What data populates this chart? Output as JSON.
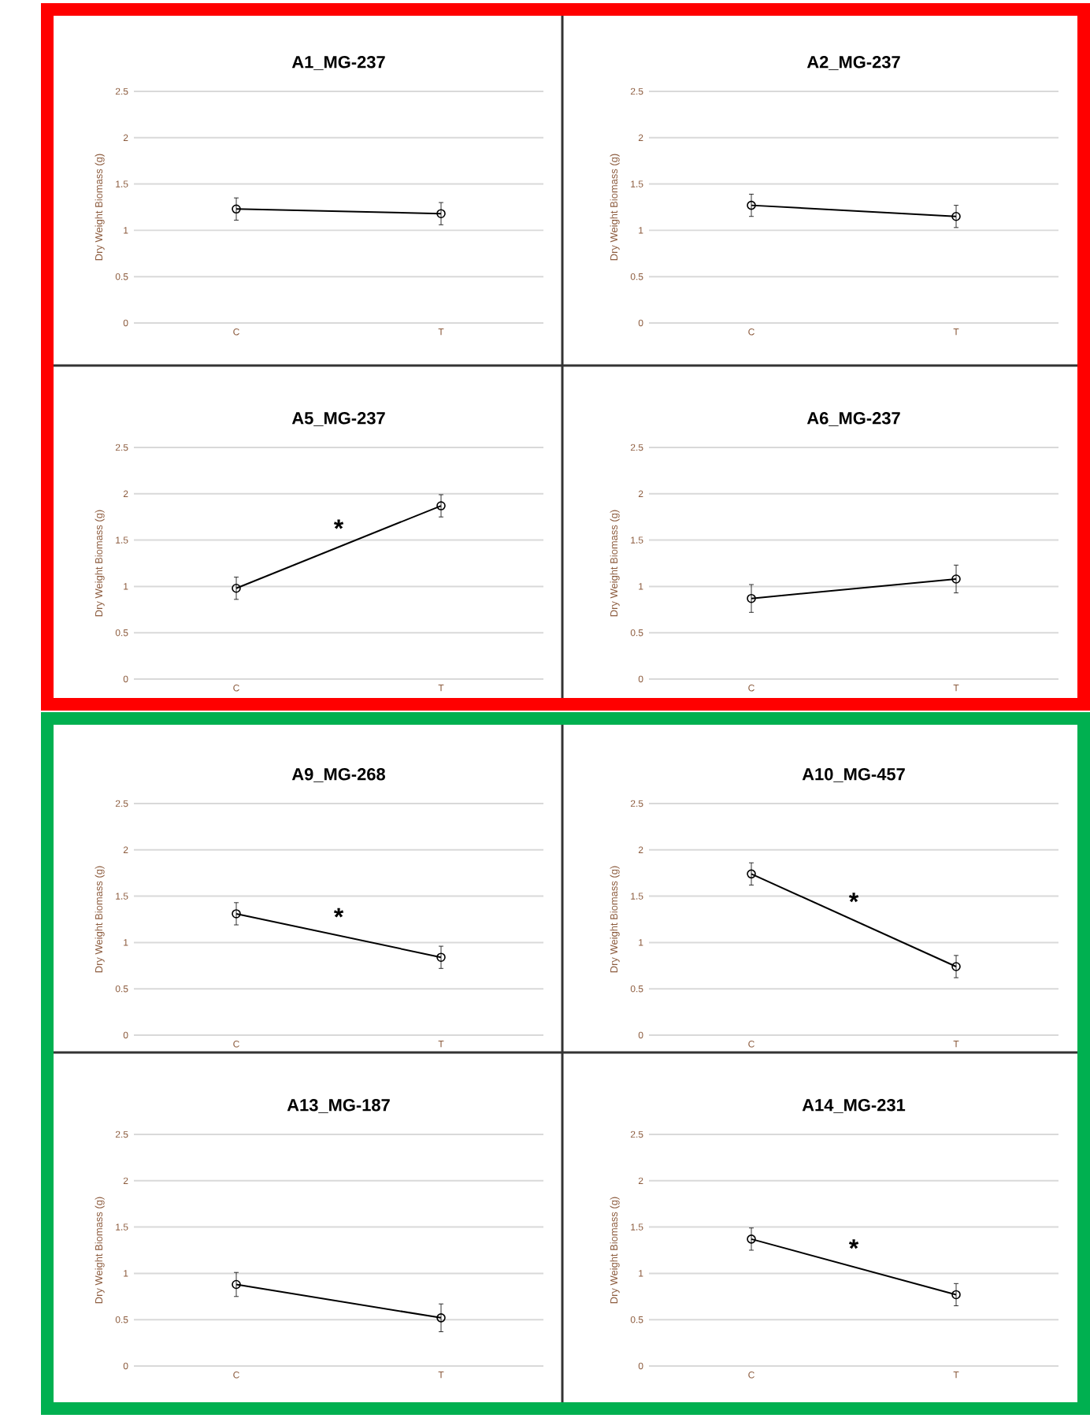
{
  "chart_data": [
    {
      "type": "line",
      "title": "A1_MG-237",
      "ylabel": "Dry Weight Biomass (g)",
      "categories": [
        "C",
        "T"
      ],
      "values": [
        1.23,
        1.18
      ],
      "errors": [
        0.12,
        0.12
      ],
      "color": "#000000",
      "ylim": [
        0,
        2.5
      ],
      "yticks": [
        0,
        0.5,
        1,
        1.5,
        2,
        2.5
      ],
      "grid": "y",
      "marker": "circle"
    },
    {
      "type": "line",
      "title": "A2_MG-237",
      "ylabel": "Dry Weight Biomass (g)",
      "categories": [
        "C",
        "T"
      ],
      "values": [
        1.27,
        1.15
      ],
      "errors": [
        0.12,
        0.12
      ],
      "color": "#000000",
      "ylim": [
        0,
        2.5
      ],
      "yticks": [
        0,
        0.5,
        1,
        1.5,
        2,
        2.5
      ],
      "grid": "y",
      "marker": "circle"
    },
    {
      "type": "line",
      "title": "A5_MG-237",
      "ylabel": "Dry Weight Biomass (g)",
      "categories": [
        "C",
        "T"
      ],
      "values": [
        0.98,
        1.87
      ],
      "errors": [
        0.12,
        0.12
      ],
      "color": "#000000",
      "ylim": [
        0,
        2.5
      ],
      "yticks": [
        0,
        0.5,
        1,
        1.5,
        2,
        2.5
      ],
      "grid": "y",
      "marker": "circle",
      "annotations": [
        "*"
      ]
    },
    {
      "type": "line",
      "title": "A6_MG-237",
      "ylabel": "Dry Weight Biomass (g)",
      "categories": [
        "C",
        "T"
      ],
      "values": [
        0.87,
        1.08
      ],
      "errors": [
        0.15,
        0.15
      ],
      "color": "#000000",
      "ylim": [
        0,
        2.5
      ],
      "yticks": [
        0,
        0.5,
        1,
        1.5,
        2,
        2.5
      ],
      "grid": "y",
      "marker": "circle"
    },
    {
      "type": "line",
      "title": "A9_MG-268",
      "ylabel": "Dry Weight Biomass (g)",
      "categories": [
        "C",
        "T"
      ],
      "values": [
        1.31,
        0.84
      ],
      "errors": [
        0.12,
        0.12
      ],
      "color": "#000000",
      "ylim": [
        0,
        2.5
      ],
      "yticks": [
        0,
        0.5,
        1,
        1.5,
        2,
        2.5
      ],
      "grid": "y",
      "marker": "circle",
      "annotations": [
        "*"
      ]
    },
    {
      "type": "line",
      "title": "A10_MG-457",
      "ylabel": "Dry Weight Biomass (g)",
      "categories": [
        "C",
        "T"
      ],
      "values": [
        1.74,
        0.74
      ],
      "errors": [
        0.12,
        0.12
      ],
      "color": "#000000",
      "ylim": [
        0,
        2.5
      ],
      "yticks": [
        0,
        0.5,
        1,
        1.5,
        2,
        2.5
      ],
      "grid": "y",
      "marker": "circle",
      "annotations": [
        "*"
      ]
    },
    {
      "type": "line",
      "title": "A13_MG-187",
      "ylabel": "Dry Weight Biomass (g)",
      "categories": [
        "C",
        "T"
      ],
      "values": [
        0.88,
        0.52
      ],
      "errors": [
        0.13,
        0.15
      ],
      "color": "#000000",
      "ylim": [
        0,
        2.5
      ],
      "yticks": [
        0,
        0.5,
        1,
        1.5,
        2,
        2.5
      ],
      "grid": "y",
      "marker": "circle"
    },
    {
      "type": "line",
      "title": "A14_MG-231",
      "ylabel": "Dry Weight Biomass (g)",
      "categories": [
        "C",
        "T"
      ],
      "values": [
        1.37,
        0.77
      ],
      "errors": [
        0.12,
        0.12
      ],
      "color": "#000000",
      "ylim": [
        0,
        2.5
      ],
      "yticks": [
        0,
        0.5,
        1,
        1.5,
        2,
        2.5
      ],
      "grid": "y",
      "marker": "circle",
      "annotations": [
        "*"
      ]
    }
  ]
}
